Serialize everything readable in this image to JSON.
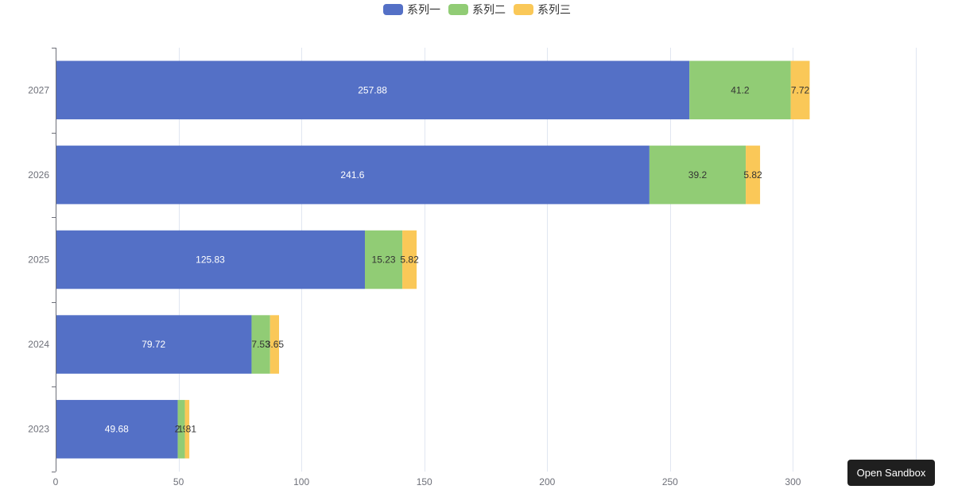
{
  "chart_data": {
    "type": "bar",
    "orientation": "horizontal",
    "stacked": true,
    "categories": [
      "2023",
      "2024",
      "2025",
      "2026",
      "2027"
    ],
    "series": [
      {
        "name": "系列一",
        "color": "#5470c6",
        "label_color": "#ffffff",
        "values": [
          49.68,
          79.72,
          125.83,
          241.6,
          257.88
        ]
      },
      {
        "name": "系列二",
        "color": "#91cc75",
        "label_color": "#333333",
        "values": [
          2.9,
          7.53,
          15.23,
          39.2,
          41.2
        ]
      },
      {
        "name": "系列三",
        "color": "#fac858",
        "label_color": "#333333",
        "values": [
          1.81,
          3.65,
          5.82,
          5.82,
          7.72
        ]
      }
    ],
    "xlim": [
      0,
      350
    ],
    "x_ticks": [
      0,
      50,
      100,
      150,
      200,
      250,
      300
    ],
    "grid": true,
    "legend_position": "top-center"
  },
  "sandbox_button": {
    "label": "Open Sandbox"
  }
}
